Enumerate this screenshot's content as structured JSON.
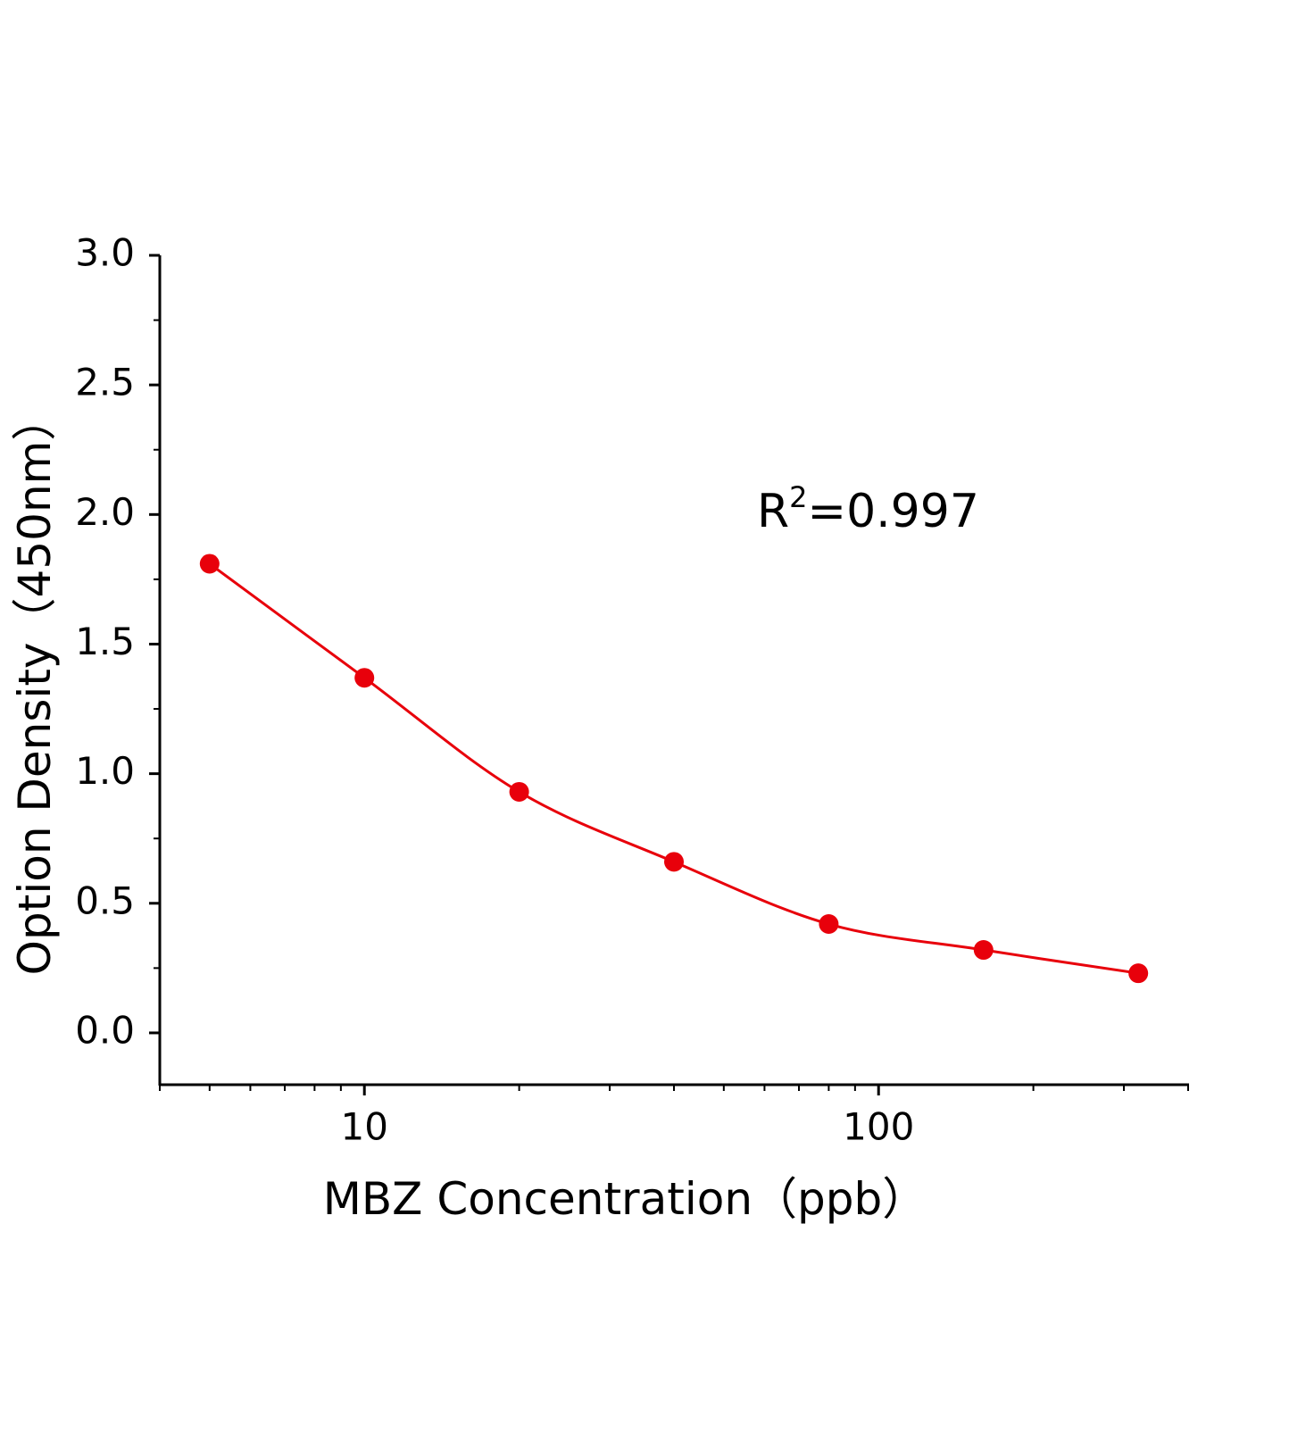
{
  "chart_data": {
    "type": "scatter",
    "x_label": "MBZ Concentration（ppb）",
    "y_label": "Option Density（450nm）",
    "annotation": {
      "base": "R",
      "sup": "2",
      "text": "=0.997"
    },
    "x_log": true,
    "xlim": [
      4,
      400
    ],
    "xticks": [
      10,
      100
    ],
    "ylim": [
      -0.2,
      3.0
    ],
    "yticks": [
      {
        "value": 0,
        "label": "0.0"
      },
      0.5,
      {
        "value": 1,
        "label": "1.0"
      },
      1.5,
      {
        "value": 2,
        "label": "2.0"
      },
      2.5,
      {
        "value": 3,
        "label": "3.0"
      }
    ],
    "fit_line": true,
    "series": [
      {
        "color": "#e8000b",
        "x": [
          5,
          10,
          20,
          40,
          80,
          160,
          320
        ],
        "values": [
          1.81,
          1.37,
          0.93,
          0.66,
          0.42,
          0.32,
          0.23
        ]
      }
    ]
  }
}
